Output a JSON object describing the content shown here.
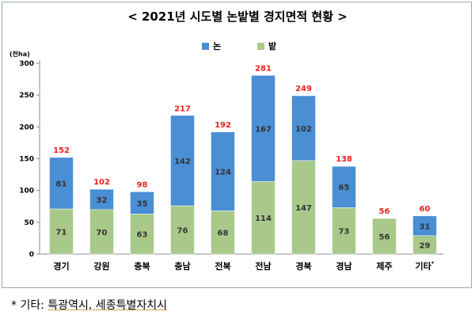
{
  "chart_data": {
    "type": "bar",
    "stacked": true,
    "title": "< 2021년 시도별 논밭별 경지면적 현황 >",
    "unit_label": "(천ha)",
    "categories": [
      "경기",
      "강원",
      "충북",
      "충남",
      "전북",
      "전남",
      "경북",
      "경남",
      "제주",
      "기타*"
    ],
    "series": [
      {
        "name": "밭",
        "color": "#a9c98a",
        "values": [
          71,
          70,
          63,
          76,
          68,
          114,
          147,
          73,
          56,
          29
        ]
      },
      {
        "name": "논",
        "color": "#4a8fd4",
        "values": [
          81,
          32,
          35,
          142,
          124,
          167,
          102,
          65,
          0,
          31
        ]
      }
    ],
    "totals": [
      152,
      102,
      98,
      217,
      192,
      281,
      249,
      138,
      56,
      60
    ],
    "ylim": [
      0,
      300
    ],
    "yticks": [
      0,
      50,
      100,
      150,
      200,
      250,
      300
    ],
    "legend_position": "top",
    "legend_order": [
      "논",
      "밭"
    ],
    "total_label_color": "#e8221e",
    "grid": false
  },
  "footnote": {
    "prefix": "* 기타: ",
    "underlined": "특광역시, 세종특별자치시"
  }
}
